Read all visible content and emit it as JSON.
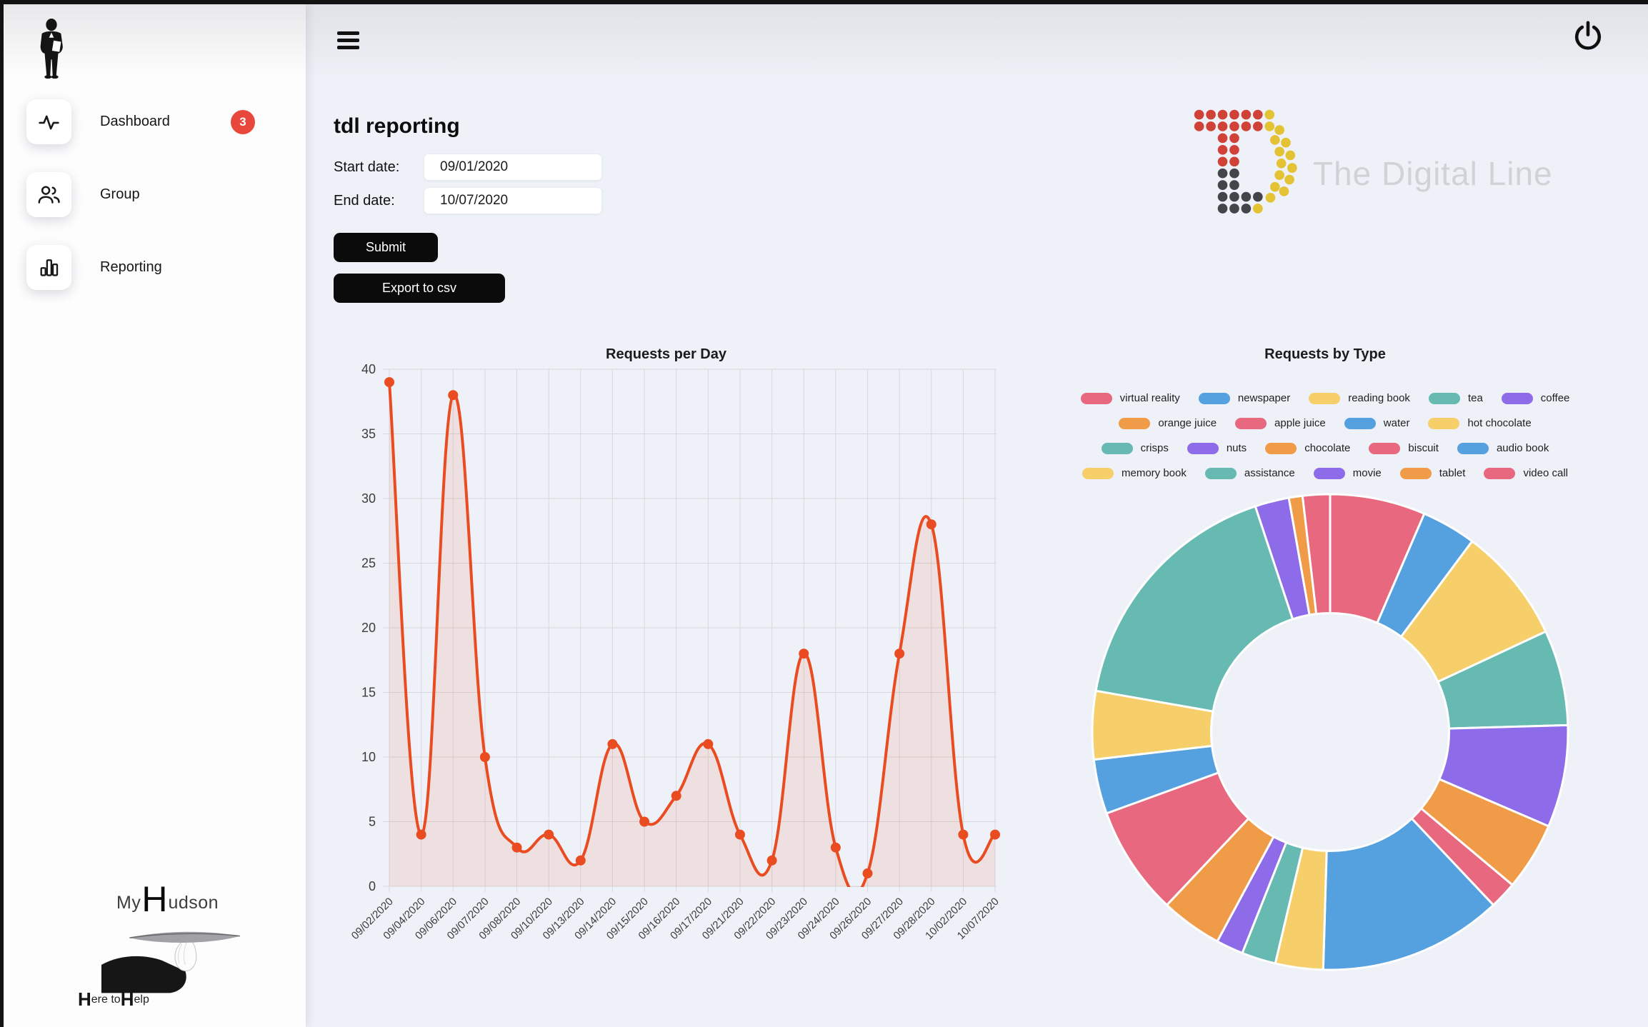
{
  "window": {
    "frame_color": "#131313"
  },
  "sidebar": {
    "brand_icon": "butler-icon",
    "items": [
      {
        "label": "Dashboard",
        "icon": "activity-icon",
        "badge": "3"
      },
      {
        "label": "Group",
        "icon": "people-icon",
        "badge": null
      },
      {
        "label": "Reporting",
        "icon": "bar-chart-icon",
        "badge": null
      }
    ],
    "footer_logo": {
      "word_prefix": "My",
      "word_h": "H",
      "word_rest": "udson",
      "tagline_h1": "H",
      "tagline_mid": "ere to ",
      "tagline_h2": "H",
      "tagline_end": "elp"
    }
  },
  "header": {
    "menu_icon": "hamburger-menu-icon",
    "power_icon": "power-icon"
  },
  "page": {
    "title": "tdl reporting"
  },
  "form": {
    "start_label": "Start date:",
    "start_value": "09/01/2020",
    "end_label": "End date:",
    "end_value": "10/07/2020",
    "submit_label": "Submit",
    "export_label": "Export to csv"
  },
  "brand": {
    "name": "The Digital Line"
  },
  "colors": {
    "badge": "#e8473c",
    "line": "#ea4c22",
    "line_fill": "rgba(234,76,34,0.10)",
    "grid": "#d7d8dd",
    "axis_text": "#3c3c3c",
    "palette": [
      "#e8697f",
      "#55a1e0",
      "#f6cf6b",
      "#66bab2",
      "#8e6ce9",
      "#f09b47"
    ]
  },
  "chart_data": [
    {
      "type": "line",
      "title": "Requests per Day",
      "xlabel": "",
      "ylabel": "",
      "x": [
        "09/02/2020",
        "09/04/2020",
        "09/06/2020",
        "09/07/2020",
        "09/08/2020",
        "09/10/2020",
        "09/13/2020",
        "09/14/2020",
        "09/15/2020",
        "09/16/2020",
        "09/17/2020",
        "09/21/2020",
        "09/22/2020",
        "09/23/2020",
        "09/24/2020",
        "09/26/2020",
        "09/27/2020",
        "09/28/2020",
        "10/02/2020",
        "10/07/2020"
      ],
      "values": [
        39,
        4,
        38,
        10,
        3,
        4,
        2,
        11,
        5,
        7,
        11,
        4,
        2,
        18,
        3,
        1,
        18,
        28,
        4,
        4
      ],
      "ylim": [
        0,
        40
      ],
      "yticks": [
        0,
        5,
        10,
        15,
        20,
        25,
        30,
        35,
        40
      ],
      "grid": true,
      "legend_position": "none",
      "line_color": "#ea4c22",
      "fill_color": "rgba(234,76,34,0.10)",
      "point_color": "#ea4c22",
      "smooth": true
    },
    {
      "type": "donut",
      "title": "Requests by Type",
      "labels": [
        "virtual reality",
        "newspaper",
        "reading book",
        "tea",
        "coffee",
        "orange juice",
        "apple juice",
        "water",
        "hot chocolate",
        "crisps",
        "nuts",
        "chocolate",
        "biscuit",
        "audio book",
        "memory book",
        "assistance",
        "movie",
        "tablet",
        "video call"
      ],
      "values": [
        14,
        8,
        17,
        14,
        15,
        10,
        4,
        27,
        7,
        5,
        4,
        9,
        16,
        8,
        10,
        37,
        5,
        2,
        4
      ],
      "palette": [
        "#e8697f",
        "#55a1e0",
        "#f6cf6b",
        "#66bab2",
        "#8e6ce9",
        "#f09b47"
      ],
      "legend_rows": [
        [
          0,
          1,
          2,
          3,
          4
        ],
        [
          5,
          6,
          7,
          8
        ],
        [
          9,
          10,
          11,
          12,
          13
        ],
        [
          14,
          15,
          16,
          17,
          18
        ]
      ],
      "legend_position": "top",
      "start_angle": "top",
      "direction": "clockwise",
      "inner_radius_ratio": 0.5
    }
  ]
}
